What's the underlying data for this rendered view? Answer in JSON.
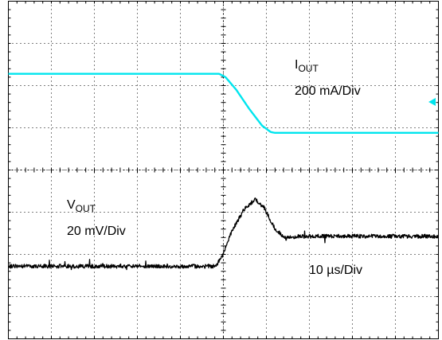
{
  "chart_data": {
    "type": "line",
    "title": "",
    "xlabel": "",
    "ylabel": "",
    "grid": true,
    "divisions": {
      "x": 10,
      "y": 8
    },
    "time_scale": "10 µs/Div",
    "xlim": [
      0,
      10
    ],
    "series": [
      {
        "name": "IOUT",
        "color": "#00e5ee",
        "scale": "200 mA/Div",
        "x": [
          0,
          4.9,
          5.05,
          5.3,
          5.6,
          5.9,
          6.1,
          6.2,
          10
        ],
        "y": [
          6.28,
          6.28,
          6.2,
          5.9,
          5.45,
          5.05,
          4.9,
          4.88,
          4.88
        ]
      },
      {
        "name": "VOUT",
        "color": "#000000",
        "scale": "20 mV/Div",
        "x": [
          0,
          4.8,
          4.95,
          5.2,
          5.5,
          5.75,
          5.95,
          6.2,
          6.45,
          6.7,
          10
        ],
        "y": [
          1.72,
          1.72,
          1.9,
          2.55,
          3.1,
          3.3,
          3.1,
          2.6,
          2.38,
          2.43,
          2.43
        ]
      }
    ]
  },
  "labels": {
    "iout_main": "I",
    "iout_sub": "OUT",
    "iout_scale": "200 mA/Div",
    "vout_main": "V",
    "vout_sub": "OUT",
    "vout_scale": "20 mV/Div",
    "time_scale": "10 µs/Div"
  },
  "colors": {
    "iout": "#00e5ee",
    "vout": "#000000",
    "grid": "#000000"
  },
  "marker_icon": "cyan-left-triangle-icon"
}
